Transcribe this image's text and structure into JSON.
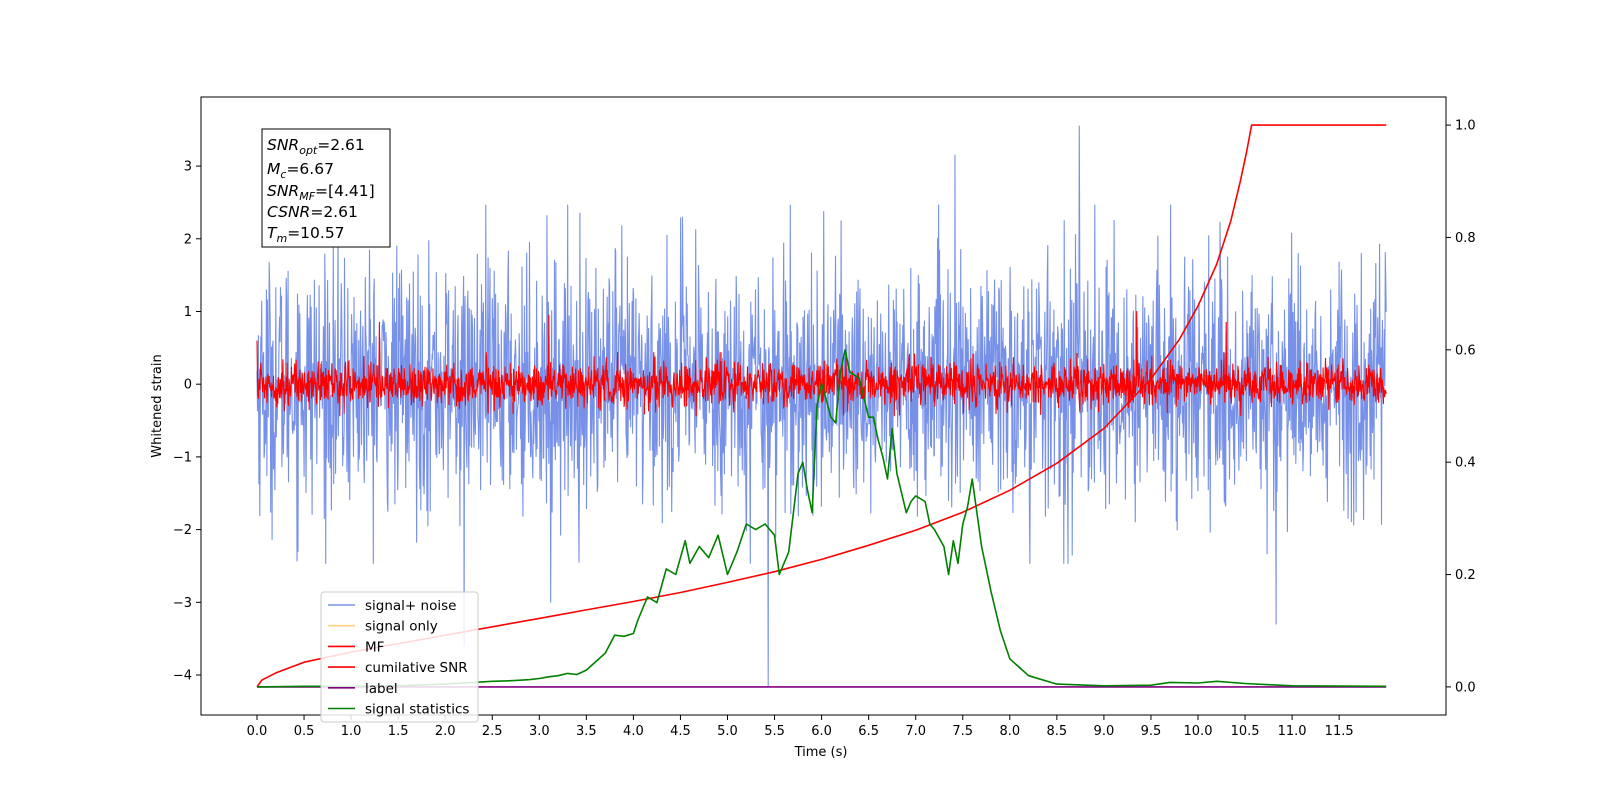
{
  "chart_data": {
    "type": "line",
    "xlabel": "Time (s)",
    "ylabel": "Whitened strain",
    "xlim": [
      -0.6,
      12.6
    ],
    "ylim": [
      -4.55,
      3.95
    ],
    "y2lim": [
      -0.05,
      1.05
    ],
    "xticks": [
      "0.0",
      "0.5",
      "1.0",
      "1.5",
      "2.0",
      "2.5",
      "3.0",
      "3.5",
      "4.0",
      "4.5",
      "5.0",
      "5.5",
      "6.0",
      "6.5",
      "7.0",
      "7.5",
      "8.0",
      "8.5",
      "9.0",
      "9.5",
      "10.0",
      "10.5",
      "11.0",
      "11.5"
    ],
    "yticks": [
      "3",
      "2",
      "1",
      "0",
      "−1",
      "−2",
      "−3",
      "−4"
    ],
    "y2ticks": [
      "1.0",
      "0.8",
      "0.6",
      "0.4",
      "0.2",
      "0.0"
    ],
    "legend_position": "lower-left",
    "grid": false,
    "annotation": {
      "snr_opt": {
        "symbol": "SNR",
        "sub": "opt",
        "value": "=2.61"
      },
      "m_c": {
        "symbol": "M",
        "sub": "c",
        "value": "=6.67"
      },
      "snr_mf": {
        "symbol": "SNR",
        "sub": "MF",
        "value": "=[4.41]"
      },
      "csnr": {
        "symbol": "CSNR",
        "sub": "",
        "value": "=2.61"
      },
      "t_m": {
        "symbol": "T",
        "sub": "m",
        "value": "=10.57"
      }
    },
    "series": [
      {
        "name": "signal+ noise",
        "color": "#7791e8",
        "axis": "left",
        "style": "noise",
        "x_range": [
          0.0,
          12.0
        ],
        "std": 0.85,
        "spikes": [
          [
            5.43,
            -4.15
          ],
          [
            8.74,
            3.55
          ],
          [
            10.83,
            -3.3
          ],
          [
            7.42,
            3.15
          ],
          [
            3.12,
            -3.0
          ],
          [
            2.2,
            -3.6
          ]
        ]
      },
      {
        "name": "signal only",
        "color": "#ffd27f",
        "axis": "left",
        "style": "hidden"
      },
      {
        "name": "MF",
        "color": "#ff0000",
        "axis": "left",
        "style": "noise",
        "x_range": [
          0.0,
          12.0
        ],
        "std": 0.15,
        "spikes": [
          [
            1.3,
            0.85
          ],
          [
            3.1,
            0.95
          ],
          [
            9.35,
            1.0
          ],
          [
            10.3,
            0.85
          ],
          [
            0.0,
            0.6
          ]
        ]
      },
      {
        "name": "cumilative SNR",
        "color": "#ff0000",
        "axis": "right",
        "x": [
          0.0,
          0.05,
          0.2,
          0.5,
          1.0,
          1.5,
          2.0,
          2.5,
          3.0,
          3.5,
          4.0,
          4.5,
          5.0,
          5.5,
          6.0,
          6.5,
          7.0,
          7.5,
          8.0,
          8.5,
          9.0,
          9.5,
          9.8,
          10.0,
          10.2,
          10.35,
          10.45,
          10.52,
          10.57,
          11.0,
          11.5,
          12.0
        ],
        "y": [
          0.0,
          0.012,
          0.025,
          0.044,
          0.062,
          0.077,
          0.092,
          0.107,
          0.122,
          0.137,
          0.152,
          0.168,
          0.186,
          0.205,
          0.227,
          0.252,
          0.279,
          0.311,
          0.35,
          0.398,
          0.46,
          0.548,
          0.618,
          0.678,
          0.753,
          0.83,
          0.9,
          0.955,
          1.0,
          1.0,
          1.0,
          1.0
        ]
      },
      {
        "name": "label",
        "color": "#800080",
        "axis": "right",
        "x": [
          0.0,
          12.0
        ],
        "y": [
          0.0,
          0.0
        ]
      },
      {
        "name": "signal statistics",
        "color": "#008000",
        "axis": "right",
        "x": [
          0.0,
          0.5,
          1.0,
          1.5,
          2.0,
          2.3,
          2.5,
          2.7,
          2.8,
          2.9,
          3.0,
          3.1,
          3.2,
          3.3,
          3.4,
          3.5,
          3.6,
          3.7,
          3.8,
          3.9,
          4.0,
          4.05,
          4.15,
          4.25,
          4.35,
          4.45,
          4.55,
          4.6,
          4.7,
          4.8,
          4.9,
          5.0,
          5.1,
          5.2,
          5.3,
          5.4,
          5.5,
          5.55,
          5.65,
          5.75,
          5.8,
          5.85,
          5.9,
          5.95,
          6.0,
          6.1,
          6.15,
          6.2,
          6.25,
          6.3,
          6.4,
          6.5,
          6.55,
          6.6,
          6.65,
          6.7,
          6.75,
          6.8,
          6.9,
          6.95,
          7.0,
          7.1,
          7.15,
          7.2,
          7.3,
          7.35,
          7.4,
          7.45,
          7.5,
          7.55,
          7.6,
          7.7,
          7.8,
          7.9,
          8.0,
          8.2,
          8.5,
          9.0,
          9.5,
          9.7,
          10.0,
          10.2,
          10.5,
          11.0,
          12.0
        ],
        "y": [
          0.0,
          0.001,
          0.001,
          0.002,
          0.005,
          0.008,
          0.01,
          0.011,
          0.012,
          0.013,
          0.015,
          0.018,
          0.02,
          0.024,
          0.022,
          0.03,
          0.045,
          0.06,
          0.092,
          0.09,
          0.095,
          0.12,
          0.16,
          0.15,
          0.21,
          0.2,
          0.26,
          0.22,
          0.25,
          0.23,
          0.27,
          0.2,
          0.24,
          0.29,
          0.28,
          0.29,
          0.27,
          0.2,
          0.24,
          0.38,
          0.4,
          0.35,
          0.31,
          0.5,
          0.54,
          0.48,
          0.47,
          0.56,
          0.6,
          0.56,
          0.55,
          0.48,
          0.48,
          0.44,
          0.41,
          0.37,
          0.46,
          0.38,
          0.31,
          0.33,
          0.34,
          0.33,
          0.29,
          0.28,
          0.25,
          0.2,
          0.26,
          0.22,
          0.29,
          0.32,
          0.37,
          0.25,
          0.17,
          0.1,
          0.05,
          0.02,
          0.005,
          0.002,
          0.003,
          0.008,
          0.007,
          0.01,
          0.006,
          0.002,
          0.001
        ]
      }
    ]
  }
}
